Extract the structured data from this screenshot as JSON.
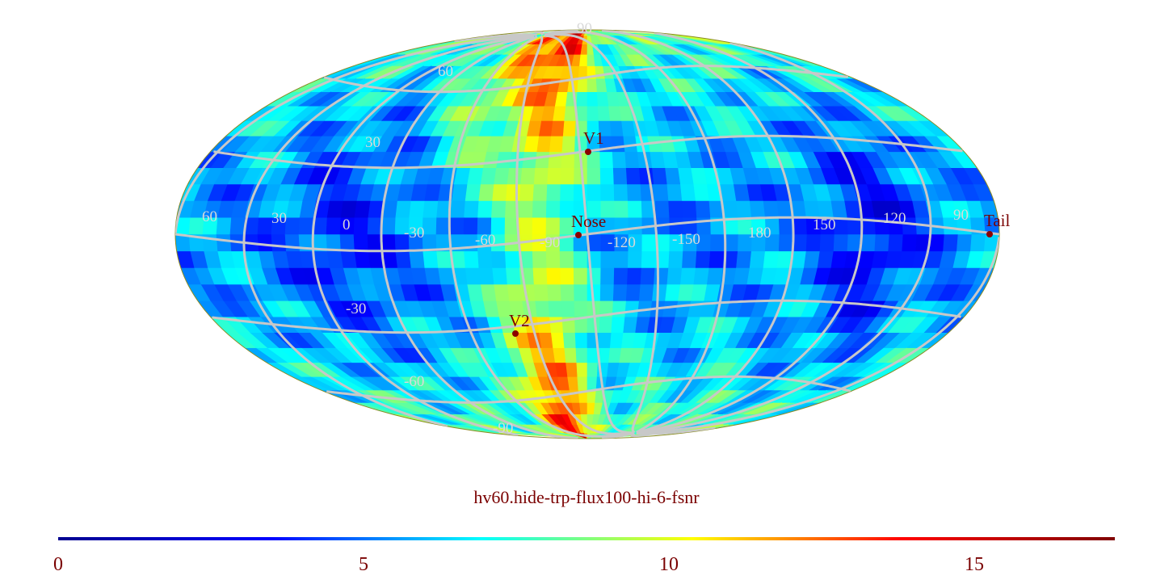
{
  "map": {
    "title": "hv60.hide-trp-flux100-hi-6-fsnr",
    "projection": "mollweide",
    "colormap": [
      "#00008f",
      "#0000ff",
      "#00ffff",
      "#ffff00",
      "#ff0000",
      "#800000"
    ],
    "grid_color": "#c8c8c8",
    "longitude_labels": [
      "60",
      "30",
      "0",
      "-30",
      "-60",
      "-90",
      "-120",
      "-150",
      "180",
      "150",
      "120",
      "90"
    ],
    "latitude_labels": [
      "90",
      "60",
      "30",
      "-30",
      "-60",
      "-90"
    ],
    "markers": [
      {
        "label": "V1"
      },
      {
        "label": "Nose"
      },
      {
        "label": "Tail"
      },
      {
        "label": "V2"
      }
    ],
    "marker_color": "#8b0000"
  },
  "colorbar": {
    "min": 0,
    "max": 17.3,
    "ticks": [
      "0",
      "5",
      "10",
      "15"
    ]
  }
}
